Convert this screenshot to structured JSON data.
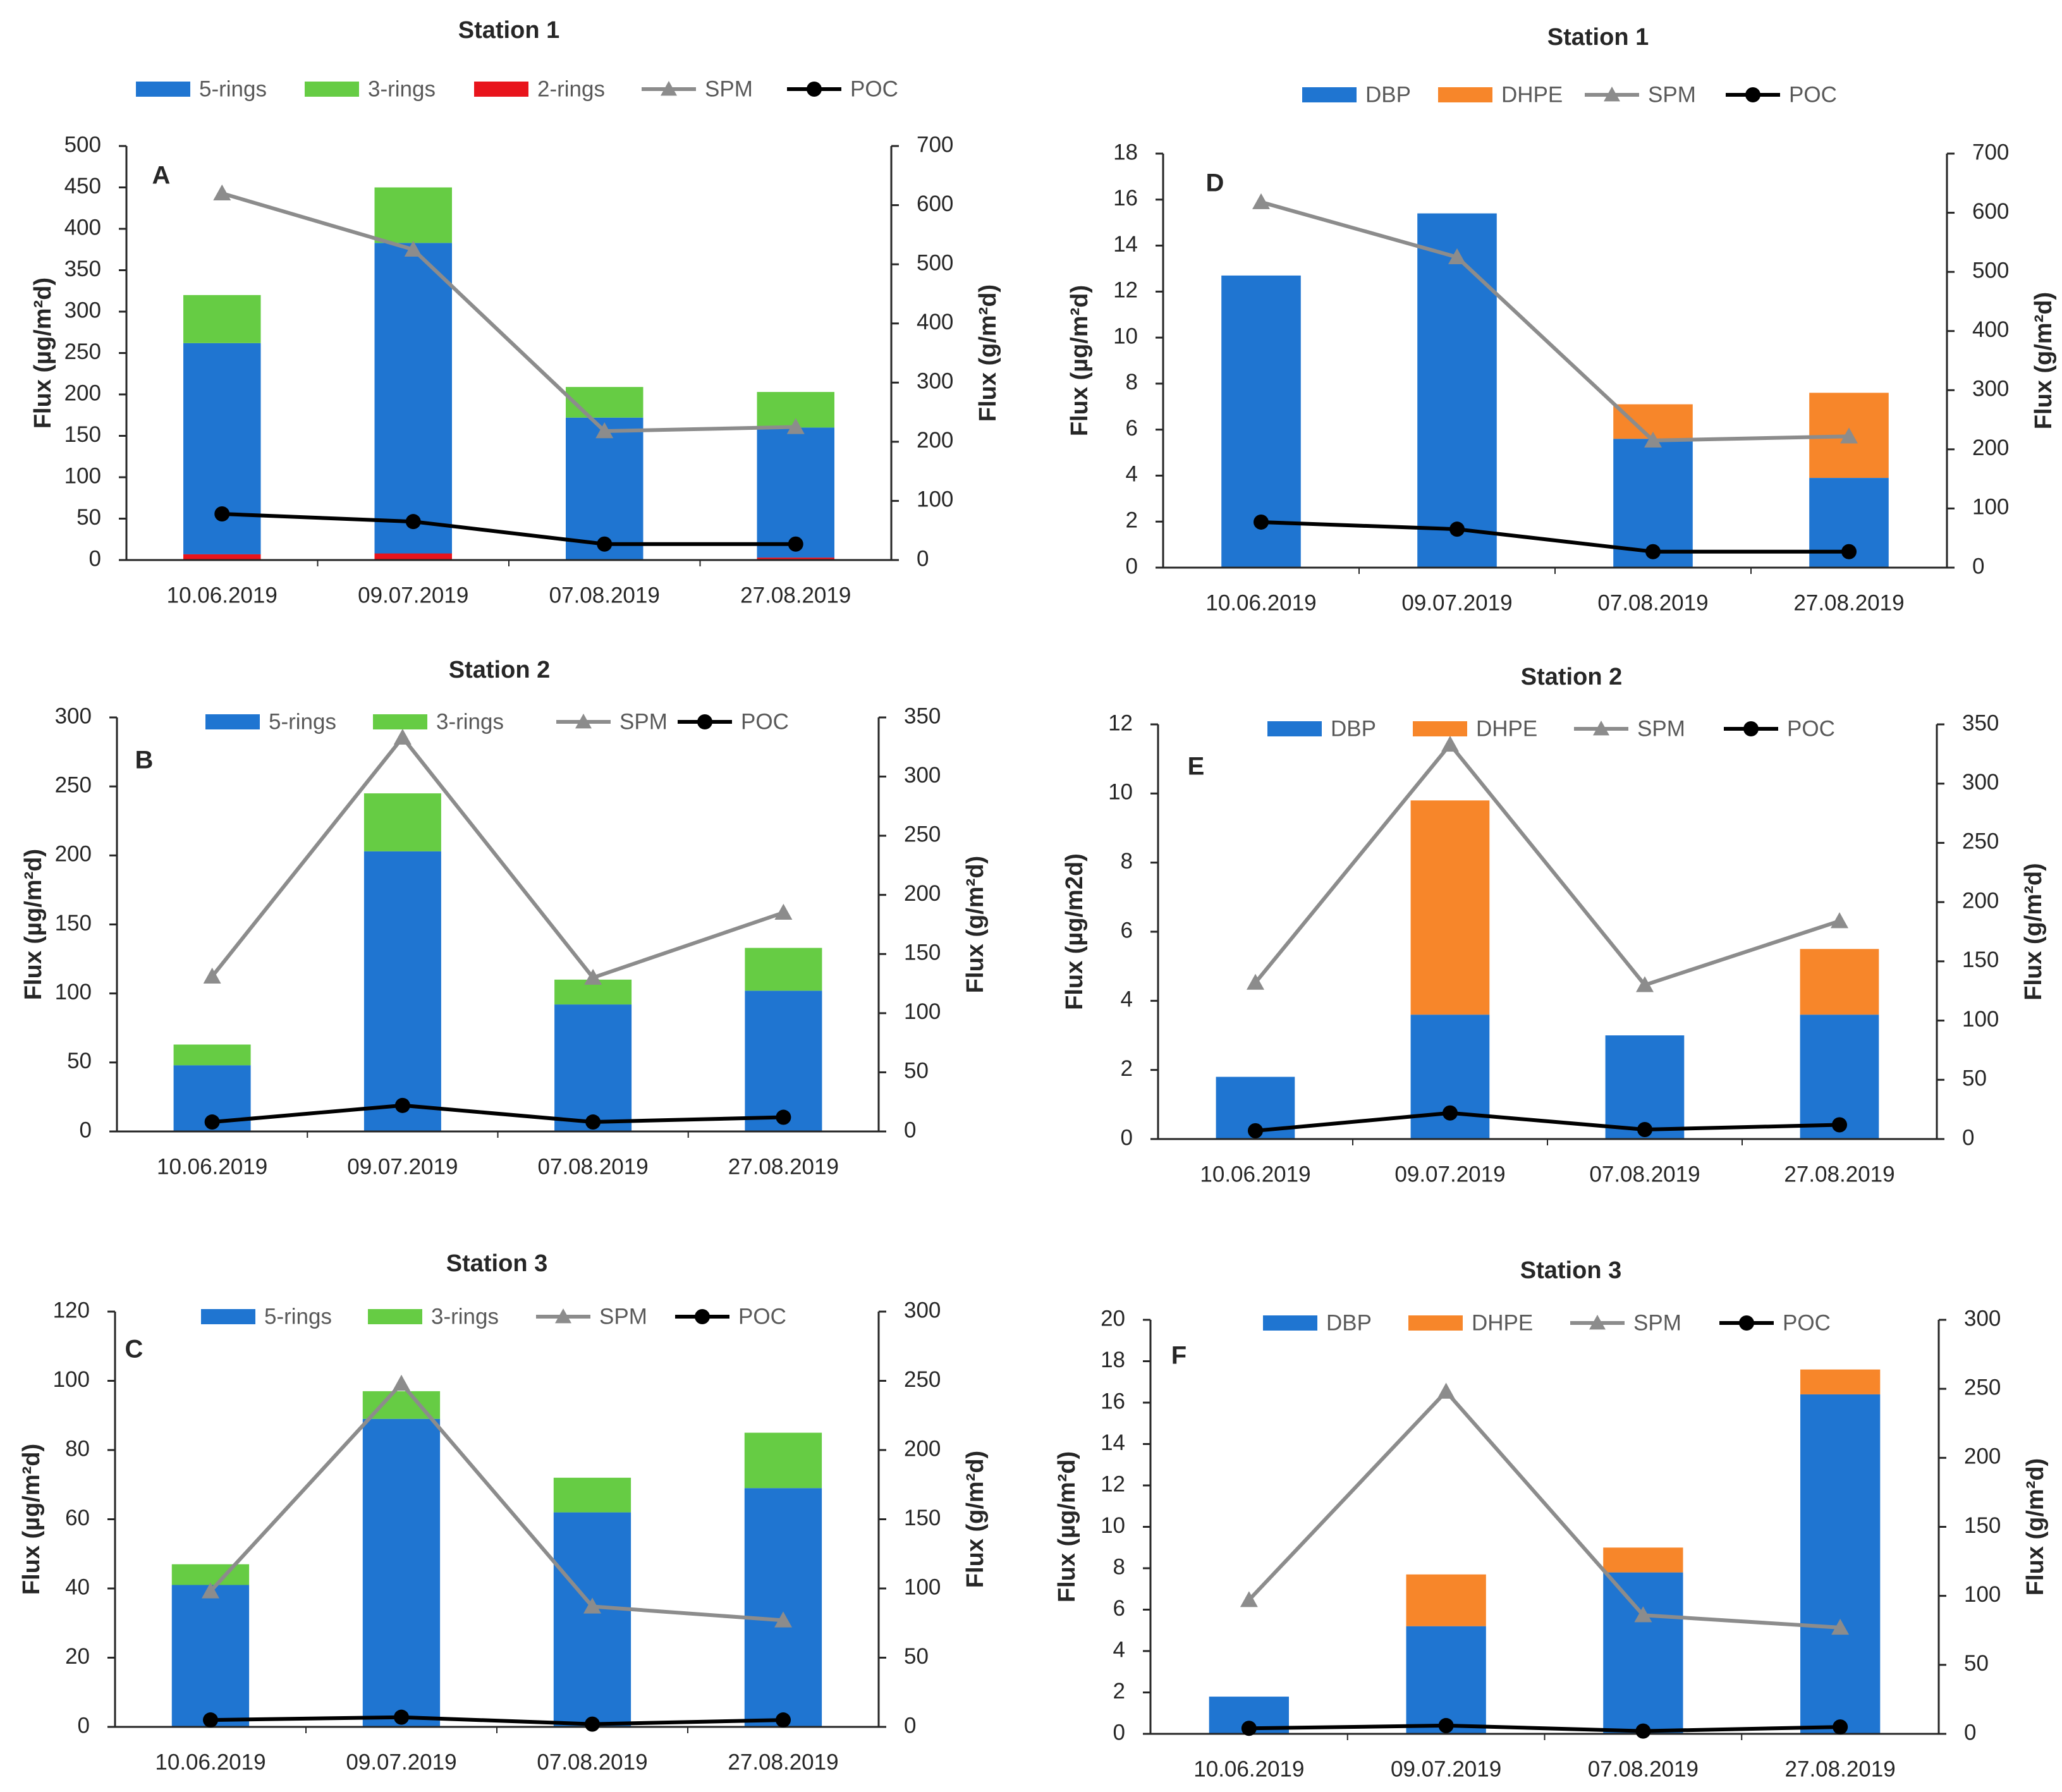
{
  "colors": {
    "blue": "#1f75d1",
    "green": "#66cc44",
    "red": "#e8141c",
    "orange": "#f7862a",
    "spm": "#8c8c8c",
    "poc": "#000000"
  },
  "chart_data": [
    {
      "type": "bar",
      "panel": "A",
      "title": "Station 1",
      "categories": [
        "10.06.2019",
        "09.07.2019",
        "07.08.2019",
        "27.08.2019"
      ],
      "ylabel": "Flux (µg/m²d)",
      "y2label": "Flux (g/m²d)",
      "ylim": [
        0,
        500
      ],
      "yticks": [
        0,
        50,
        100,
        150,
        200,
        250,
        300,
        350,
        400,
        450,
        500
      ],
      "y2lim": [
        0,
        700
      ],
      "y2ticks": [
        0,
        100,
        200,
        300,
        400,
        500,
        600,
        700
      ],
      "legend": [
        {
          "name": "5-rings",
          "kind": "bar",
          "color": "#1f75d1"
        },
        {
          "name": "3-rings",
          "kind": "bar",
          "color": "#66cc44"
        },
        {
          "name": "2-rings",
          "kind": "bar",
          "color": "#e8141c"
        },
        {
          "name": "SPM",
          "kind": "tri",
          "color": "#8c8c8c"
        },
        {
          "name": "POC",
          "kind": "dot",
          "color": "#000000"
        }
      ],
      "stacks": [
        {
          "name": "2-rings",
          "color": "#e8141c",
          "values": [
            7,
            8,
            1,
            3
          ]
        },
        {
          "name": "5-rings",
          "color": "#1f75d1",
          "values": [
            255,
            375,
            171,
            157
          ]
        },
        {
          "name": "3-rings",
          "color": "#66cc44",
          "values": [
            58,
            67,
            37,
            43
          ]
        }
      ],
      "lines": [
        {
          "name": "SPM",
          "marker": "tri",
          "color": "#8c8c8c",
          "values": [
            620,
            525,
            218,
            225
          ]
        },
        {
          "name": "POC",
          "marker": "dot",
          "color": "#000000",
          "values": [
            78,
            65,
            27,
            27
          ]
        }
      ]
    },
    {
      "type": "bar",
      "panel": "B",
      "title": "Station 2",
      "categories": [
        "10.06.2019",
        "09.07.2019",
        "07.08.2019",
        "27.08.2019"
      ],
      "ylabel": "Flux (µg/m²d)",
      "y2label": "Flux (g/m²d)",
      "ylim": [
        0,
        300
      ],
      "yticks": [
        0,
        50,
        100,
        150,
        200,
        250,
        300
      ],
      "y2lim": [
        0,
        350
      ],
      "y2ticks": [
        0,
        50,
        100,
        150,
        200,
        250,
        300,
        350
      ],
      "legend": [
        {
          "name": "5-rings",
          "kind": "bar",
          "color": "#1f75d1"
        },
        {
          "name": "3-rings",
          "kind": "bar",
          "color": "#66cc44"
        },
        {
          "name": "SPM",
          "kind": "tri",
          "color": "#8c8c8c"
        },
        {
          "name": "POC",
          "kind": "dot",
          "color": "#000000"
        }
      ],
      "stacks": [
        {
          "name": "5-rings",
          "color": "#1f75d1",
          "values": [
            48,
            203,
            92,
            102
          ]
        },
        {
          "name": "3-rings",
          "color": "#66cc44",
          "values": [
            15,
            42,
            18,
            31
          ]
        }
      ],
      "lines": [
        {
          "name": "SPM",
          "marker": "tri",
          "color": "#8c8c8c",
          "values": [
            131,
            333,
            130,
            185
          ]
        },
        {
          "name": "POC",
          "marker": "dot",
          "color": "#000000",
          "values": [
            8,
            22,
            8,
            12
          ]
        }
      ]
    },
    {
      "type": "bar",
      "panel": "C",
      "title": "Station 3",
      "categories": [
        "10.06.2019",
        "09.07.2019",
        "07.08.2019",
        "27.08.2019"
      ],
      "ylabel": "Flux (µg/m²d)",
      "y2label": "Flux (g/m²d)",
      "ylim": [
        0,
        120
      ],
      "yticks": [
        0,
        20,
        40,
        60,
        80,
        100,
        120
      ],
      "y2lim": [
        0,
        300
      ],
      "y2ticks": [
        0,
        50,
        100,
        150,
        200,
        250,
        300
      ],
      "legend": [
        {
          "name": "5-rings",
          "kind": "bar",
          "color": "#1f75d1"
        },
        {
          "name": "3-rings",
          "kind": "bar",
          "color": "#66cc44"
        },
        {
          "name": "SPM",
          "kind": "tri",
          "color": "#8c8c8c"
        },
        {
          "name": "POC",
          "kind": "dot",
          "color": "#000000"
        }
      ],
      "stacks": [
        {
          "name": "5-rings",
          "color": "#1f75d1",
          "values": [
            41,
            89,
            62,
            69
          ]
        },
        {
          "name": "3-rings",
          "color": "#66cc44",
          "values": [
            6,
            8,
            10,
            16
          ]
        }
      ],
      "lines": [
        {
          "name": "SPM",
          "marker": "tri",
          "color": "#8c8c8c",
          "values": [
            98,
            248,
            87,
            77
          ]
        },
        {
          "name": "POC",
          "marker": "dot",
          "color": "#000000",
          "values": [
            5,
            7,
            2,
            5
          ]
        }
      ]
    },
    {
      "type": "bar",
      "panel": "D",
      "title": "Station 1",
      "categories": [
        "10.06.2019",
        "09.07.2019",
        "07.08.2019",
        "27.08.2019"
      ],
      "ylabel": "Flux (µg/m²d)",
      "y2label": "Flux (g/m²d)",
      "ylim": [
        0,
        18
      ],
      "yticks": [
        0,
        2,
        4,
        6,
        8,
        10,
        12,
        14,
        16,
        18
      ],
      "y2lim": [
        0,
        700
      ],
      "y2ticks": [
        0,
        100,
        200,
        300,
        400,
        500,
        600,
        700
      ],
      "legend": [
        {
          "name": "DBP",
          "kind": "bar",
          "color": "#1f75d1"
        },
        {
          "name": "DHPE",
          "kind": "bar",
          "color": "#f7862a"
        },
        {
          "name": "SPM",
          "kind": "tri",
          "color": "#8c8c8c"
        },
        {
          "name": "POC",
          "kind": "dot",
          "color": "#000000"
        }
      ],
      "stacks": [
        {
          "name": "DBP",
          "color": "#1f75d1",
          "values": [
            12.7,
            15.4,
            5.6,
            3.9
          ]
        },
        {
          "name": "DHPE",
          "color": "#f7862a",
          "values": [
            0,
            0,
            1.5,
            3.7
          ]
        }
      ],
      "lines": [
        {
          "name": "SPM",
          "marker": "tri",
          "color": "#8c8c8c",
          "values": [
            618,
            525,
            215,
            222
          ]
        },
        {
          "name": "POC",
          "marker": "dot",
          "color": "#000000",
          "values": [
            77,
            65,
            27,
            27
          ]
        }
      ]
    },
    {
      "type": "bar",
      "panel": "E",
      "title": "Station 2",
      "categories": [
        "10.06.2019",
        "09.07.2019",
        "07.08.2019",
        "27.08.2019"
      ],
      "ylabel": "Flux (µg/m2d)",
      "y2label": "Flux (g/m²d)",
      "ylim": [
        0,
        12
      ],
      "yticks": [
        0,
        2,
        4,
        6,
        8,
        10,
        12
      ],
      "y2lim": [
        0,
        350
      ],
      "y2ticks": [
        0,
        50,
        100,
        150,
        200,
        250,
        300,
        350
      ],
      "legend": [
        {
          "name": "DBP",
          "kind": "bar",
          "color": "#1f75d1"
        },
        {
          "name": "DHPE",
          "kind": "bar",
          "color": "#f7862a"
        },
        {
          "name": "SPM",
          "kind": "tri",
          "color": "#8c8c8c"
        },
        {
          "name": "POC",
          "kind": "dot",
          "color": "#000000"
        }
      ],
      "stacks": [
        {
          "name": "DBP",
          "color": "#1f75d1",
          "values": [
            1.8,
            3.6,
            3.0,
            3.6
          ]
        },
        {
          "name": "DHPE",
          "color": "#f7862a",
          "values": [
            0,
            6.2,
            0,
            1.9
          ]
        }
      ],
      "lines": [
        {
          "name": "SPM",
          "marker": "tri",
          "color": "#8c8c8c",
          "values": [
            132,
            333,
            130,
            184
          ]
        },
        {
          "name": "POC",
          "marker": "dot",
          "color": "#000000",
          "values": [
            7,
            22,
            8,
            12
          ]
        }
      ]
    },
    {
      "type": "bar",
      "panel": "F",
      "title": "Station 3",
      "categories": [
        "10.06.2019",
        "09.07.2019",
        "07.08.2019",
        "27.08.2019"
      ],
      "ylabel": "Flux (µg/m²d)",
      "y2label": "Flux (g/m²d)",
      "ylim": [
        0,
        20
      ],
      "yticks": [
        0,
        2,
        4,
        6,
        8,
        10,
        12,
        14,
        16,
        18,
        20
      ],
      "y2lim": [
        0,
        300
      ],
      "y2ticks": [
        0,
        50,
        100,
        150,
        200,
        250,
        300
      ],
      "legend": [
        {
          "name": "DBP",
          "kind": "bar",
          "color": "#1f75d1"
        },
        {
          "name": "DHPE",
          "kind": "bar",
          "color": "#f7862a"
        },
        {
          "name": "SPM",
          "kind": "tri",
          "color": "#8c8c8c"
        },
        {
          "name": "POC",
          "kind": "dot",
          "color": "#000000"
        }
      ],
      "stacks": [
        {
          "name": "DBP",
          "color": "#1f75d1",
          "values": [
            1.8,
            5.2,
            7.8,
            16.4
          ]
        },
        {
          "name": "DHPE",
          "color": "#f7862a",
          "values": [
            0,
            2.5,
            1.2,
            1.2
          ]
        }
      ],
      "lines": [
        {
          "name": "SPM",
          "marker": "tri",
          "color": "#8c8c8c",
          "values": [
            97,
            248,
            86,
            77
          ]
        },
        {
          "name": "POC",
          "marker": "dot",
          "color": "#000000",
          "values": [
            4,
            6,
            2,
            5
          ]
        }
      ]
    }
  ]
}
